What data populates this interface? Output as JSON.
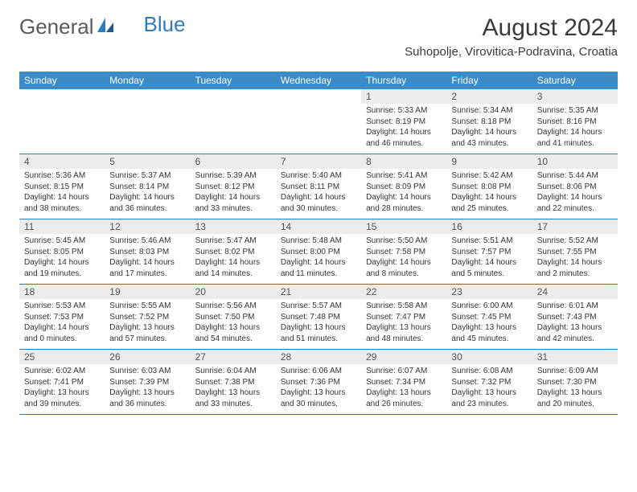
{
  "logo": {
    "part1": "General",
    "part2": "Blue"
  },
  "title": "August 2024",
  "location": "Suhopolje, Virovitica-Podravina, Croatia",
  "colors": {
    "header_bg": "#3b8bc9",
    "header_text": "#ffffff",
    "daynum_bg": "#ececec",
    "border": "#2f7bbf",
    "logo_gray": "#5a5a5a",
    "logo_blue": "#2f7bbf"
  },
  "day_names": [
    "Sunday",
    "Monday",
    "Tuesday",
    "Wednesday",
    "Thursday",
    "Friday",
    "Saturday"
  ],
  "weeks": [
    [
      {
        "n": "",
        "sr": "",
        "ss": "",
        "dl": ""
      },
      {
        "n": "",
        "sr": "",
        "ss": "",
        "dl": ""
      },
      {
        "n": "",
        "sr": "",
        "ss": "",
        "dl": ""
      },
      {
        "n": "",
        "sr": "",
        "ss": "",
        "dl": ""
      },
      {
        "n": "1",
        "sr": "Sunrise: 5:33 AM",
        "ss": "Sunset: 8:19 PM",
        "dl": "Daylight: 14 hours and 46 minutes."
      },
      {
        "n": "2",
        "sr": "Sunrise: 5:34 AM",
        "ss": "Sunset: 8:18 PM",
        "dl": "Daylight: 14 hours and 43 minutes."
      },
      {
        "n": "3",
        "sr": "Sunrise: 5:35 AM",
        "ss": "Sunset: 8:16 PM",
        "dl": "Daylight: 14 hours and 41 minutes."
      }
    ],
    [
      {
        "n": "4",
        "sr": "Sunrise: 5:36 AM",
        "ss": "Sunset: 8:15 PM",
        "dl": "Daylight: 14 hours and 38 minutes."
      },
      {
        "n": "5",
        "sr": "Sunrise: 5:37 AM",
        "ss": "Sunset: 8:14 PM",
        "dl": "Daylight: 14 hours and 36 minutes."
      },
      {
        "n": "6",
        "sr": "Sunrise: 5:39 AM",
        "ss": "Sunset: 8:12 PM",
        "dl": "Daylight: 14 hours and 33 minutes."
      },
      {
        "n": "7",
        "sr": "Sunrise: 5:40 AM",
        "ss": "Sunset: 8:11 PM",
        "dl": "Daylight: 14 hours and 30 minutes."
      },
      {
        "n": "8",
        "sr": "Sunrise: 5:41 AM",
        "ss": "Sunset: 8:09 PM",
        "dl": "Daylight: 14 hours and 28 minutes."
      },
      {
        "n": "9",
        "sr": "Sunrise: 5:42 AM",
        "ss": "Sunset: 8:08 PM",
        "dl": "Daylight: 14 hours and 25 minutes."
      },
      {
        "n": "10",
        "sr": "Sunrise: 5:44 AM",
        "ss": "Sunset: 8:06 PM",
        "dl": "Daylight: 14 hours and 22 minutes."
      }
    ],
    [
      {
        "n": "11",
        "sr": "Sunrise: 5:45 AM",
        "ss": "Sunset: 8:05 PM",
        "dl": "Daylight: 14 hours and 19 minutes."
      },
      {
        "n": "12",
        "sr": "Sunrise: 5:46 AM",
        "ss": "Sunset: 8:03 PM",
        "dl": "Daylight: 14 hours and 17 minutes."
      },
      {
        "n": "13",
        "sr": "Sunrise: 5:47 AM",
        "ss": "Sunset: 8:02 PM",
        "dl": "Daylight: 14 hours and 14 minutes."
      },
      {
        "n": "14",
        "sr": "Sunrise: 5:48 AM",
        "ss": "Sunset: 8:00 PM",
        "dl": "Daylight: 14 hours and 11 minutes."
      },
      {
        "n": "15",
        "sr": "Sunrise: 5:50 AM",
        "ss": "Sunset: 7:58 PM",
        "dl": "Daylight: 14 hours and 8 minutes."
      },
      {
        "n": "16",
        "sr": "Sunrise: 5:51 AM",
        "ss": "Sunset: 7:57 PM",
        "dl": "Daylight: 14 hours and 5 minutes."
      },
      {
        "n": "17",
        "sr": "Sunrise: 5:52 AM",
        "ss": "Sunset: 7:55 PM",
        "dl": "Daylight: 14 hours and 2 minutes."
      }
    ],
    [
      {
        "n": "18",
        "sr": "Sunrise: 5:53 AM",
        "ss": "Sunset: 7:53 PM",
        "dl": "Daylight: 14 hours and 0 minutes."
      },
      {
        "n": "19",
        "sr": "Sunrise: 5:55 AM",
        "ss": "Sunset: 7:52 PM",
        "dl": "Daylight: 13 hours and 57 minutes."
      },
      {
        "n": "20",
        "sr": "Sunrise: 5:56 AM",
        "ss": "Sunset: 7:50 PM",
        "dl": "Daylight: 13 hours and 54 minutes."
      },
      {
        "n": "21",
        "sr": "Sunrise: 5:57 AM",
        "ss": "Sunset: 7:48 PM",
        "dl": "Daylight: 13 hours and 51 minutes."
      },
      {
        "n": "22",
        "sr": "Sunrise: 5:58 AM",
        "ss": "Sunset: 7:47 PM",
        "dl": "Daylight: 13 hours and 48 minutes."
      },
      {
        "n": "23",
        "sr": "Sunrise: 6:00 AM",
        "ss": "Sunset: 7:45 PM",
        "dl": "Daylight: 13 hours and 45 minutes."
      },
      {
        "n": "24",
        "sr": "Sunrise: 6:01 AM",
        "ss": "Sunset: 7:43 PM",
        "dl": "Daylight: 13 hours and 42 minutes."
      }
    ],
    [
      {
        "n": "25",
        "sr": "Sunrise: 6:02 AM",
        "ss": "Sunset: 7:41 PM",
        "dl": "Daylight: 13 hours and 39 minutes."
      },
      {
        "n": "26",
        "sr": "Sunrise: 6:03 AM",
        "ss": "Sunset: 7:39 PM",
        "dl": "Daylight: 13 hours and 36 minutes."
      },
      {
        "n": "27",
        "sr": "Sunrise: 6:04 AM",
        "ss": "Sunset: 7:38 PM",
        "dl": "Daylight: 13 hours and 33 minutes."
      },
      {
        "n": "28",
        "sr": "Sunrise: 6:06 AM",
        "ss": "Sunset: 7:36 PM",
        "dl": "Daylight: 13 hours and 30 minutes."
      },
      {
        "n": "29",
        "sr": "Sunrise: 6:07 AM",
        "ss": "Sunset: 7:34 PM",
        "dl": "Daylight: 13 hours and 26 minutes."
      },
      {
        "n": "30",
        "sr": "Sunrise: 6:08 AM",
        "ss": "Sunset: 7:32 PM",
        "dl": "Daylight: 13 hours and 23 minutes."
      },
      {
        "n": "31",
        "sr": "Sunrise: 6:09 AM",
        "ss": "Sunset: 7:30 PM",
        "dl": "Daylight: 13 hours and 20 minutes."
      }
    ]
  ]
}
